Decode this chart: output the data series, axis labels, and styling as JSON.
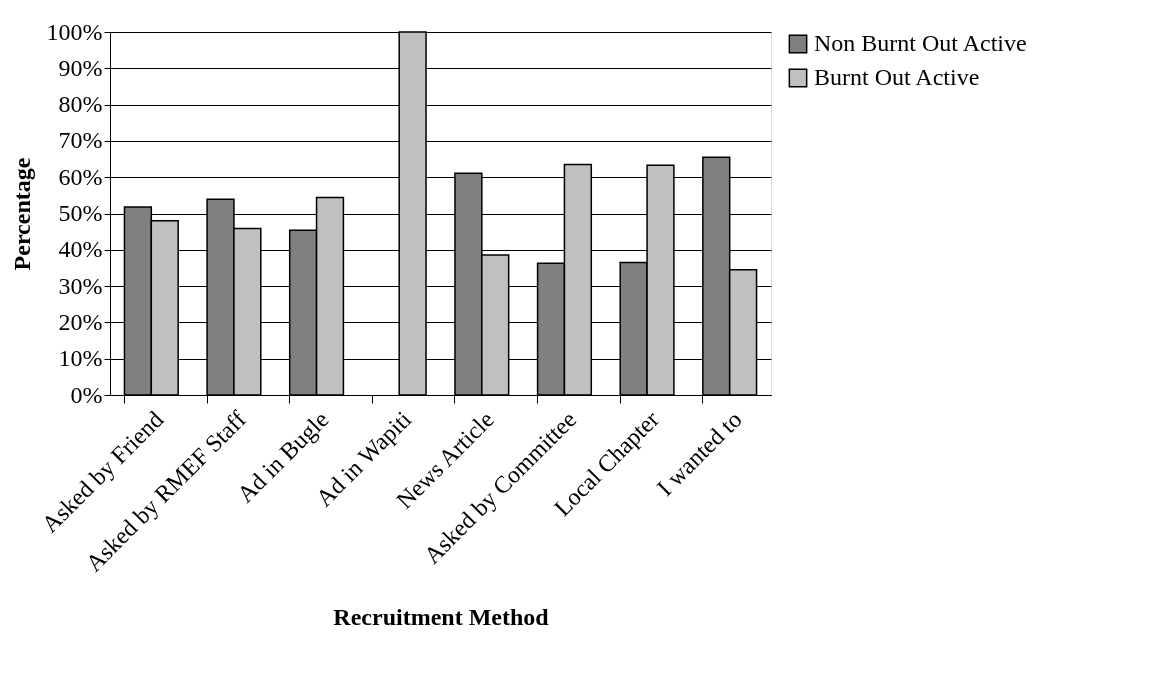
{
  "chart_data": {
    "type": "bar",
    "xlabel": "Recruitment Method",
    "ylabel": "Percentage",
    "categories": [
      "Asked by Friend",
      "Asked by RMEF Staff",
      "Ad in Bugle",
      "Ad in Wapiti",
      "News Article",
      "Asked by Committee",
      "Local Chapter",
      "I wanted to"
    ],
    "series": [
      {
        "name": "Non Burnt Out Active",
        "color": "#808080",
        "values": [
          51.8,
          53.9,
          45.4,
          null,
          61.1,
          36.3,
          36.5,
          65.5
        ]
      },
      {
        "name": "Burnt Out Active",
        "color": "#c0c0c0",
        "values": [
          48.0,
          45.9,
          54.4,
          100,
          38.6,
          63.5,
          63.3,
          34.5
        ]
      }
    ],
    "ylim": [
      0,
      100
    ],
    "yticks": [
      {
        "value": 0,
        "label": "0%"
      },
      {
        "value": 10,
        "label": "10%"
      },
      {
        "value": 20,
        "label": "20%"
      },
      {
        "value": 30,
        "label": "30%"
      },
      {
        "value": 40,
        "label": "40%"
      },
      {
        "value": 50,
        "label": "50%"
      },
      {
        "value": 60,
        "label": "60%"
      },
      {
        "value": 70,
        "label": "70%"
      },
      {
        "value": 80,
        "label": "80%"
      },
      {
        "value": 90,
        "label": "90%"
      },
      {
        "value": 100,
        "label": "100%"
      }
    ],
    "grid": "y",
    "legend": "right"
  }
}
